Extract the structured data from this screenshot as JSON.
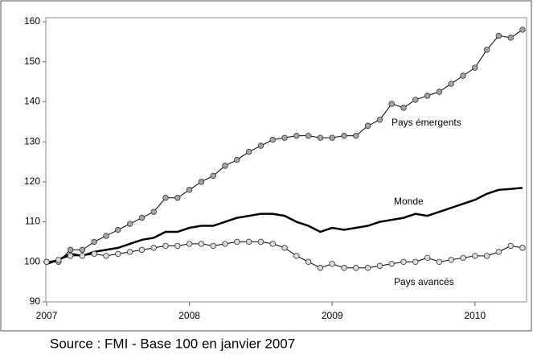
{
  "chart_data": {
    "type": "line",
    "source": "Source : FMI - Base 100 en janvier 2007",
    "x": [
      0,
      1,
      2,
      3,
      4,
      5,
      6,
      7,
      8,
      9,
      10,
      11,
      12,
      13,
      14,
      15,
      16,
      17,
      18,
      19,
      20,
      21,
      22,
      23,
      24,
      25,
      26,
      27,
      28,
      29,
      30,
      31,
      32,
      33,
      34,
      35,
      36,
      37,
      38,
      39,
      40
    ],
    "xlim": [
      0,
      40
    ],
    "xticks": [
      {
        "value": 0,
        "label": "2007"
      },
      {
        "value": 12,
        "label": "2008"
      },
      {
        "value": 24,
        "label": "2009"
      },
      {
        "value": 36,
        "label": "2010"
      }
    ],
    "ylim": [
      90,
      160
    ],
    "yticks": [
      90,
      100,
      110,
      120,
      130,
      140,
      150,
      160
    ],
    "series": [
      {
        "name": "Pays émergents",
        "color": "#000000",
        "marker": "#a6a6a6",
        "values": [
          100,
          100,
          103,
          103,
          105,
          106.5,
          108,
          109.5,
          111,
          112.5,
          116,
          116,
          118,
          120,
          121.5,
          124,
          125.5,
          127.5,
          129,
          130.5,
          131,
          131.5,
          131.5,
          131,
          131,
          131.5,
          131.5,
          134,
          135.5,
          139.5,
          138.5,
          140.5,
          141.5,
          142.5,
          144.5,
          146.5,
          148.5,
          153,
          156.5,
          156,
          158
        ]
      },
      {
        "name": "Monde",
        "color": "#000000",
        "values": [
          99.5,
          100.5,
          102,
          101.5,
          102.5,
          103,
          103.5,
          104.5,
          105.5,
          106,
          107.5,
          107.5,
          108.5,
          109,
          109,
          110,
          111,
          111.5,
          112,
          112,
          111.5,
          110,
          109,
          107.5,
          108.5,
          108,
          108.5,
          109,
          110,
          110.5,
          111,
          112,
          111.5,
          112.5,
          113.5,
          114.5,
          115.5,
          117,
          118,
          118.2,
          118.5
        ]
      },
      {
        "name": "Pays avancés",
        "color": "#000000",
        "marker": "#dcdcdc",
        "values": [
          100,
          100.5,
          101.5,
          101.5,
          102,
          101.5,
          102,
          102.5,
          103,
          103.5,
          104,
          104,
          104.5,
          104.5,
          104,
          104.5,
          105,
          105,
          105,
          104.5,
          103.5,
          101.5,
          100,
          98.5,
          99.5,
          98.5,
          98.5,
          98.5,
          99,
          99.5,
          100,
          100,
          101,
          100,
          100.5,
          101,
          101.5,
          101.5,
          102.5,
          104,
          103.5
        ]
      }
    ]
  }
}
